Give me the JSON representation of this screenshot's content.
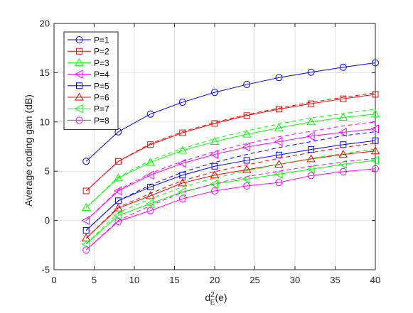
{
  "chart_data": {
    "type": "line",
    "title": "",
    "ylabel": "Average coding gain (dB)",
    "xlabel": "d_E^2(e)",
    "xlabel_parts": {
      "base": "d",
      "sup": "2",
      "sub": "E",
      "rest": "(e)"
    },
    "xlim": [
      0,
      40
    ],
    "ylim": [
      -5,
      20
    ],
    "xticks": [
      0,
      5,
      10,
      15,
      20,
      25,
      30,
      35,
      40
    ],
    "yticks": [
      -5,
      0,
      5,
      10,
      15,
      20
    ],
    "grid": true,
    "legend_position": "top-left",
    "x": [
      4,
      8,
      12,
      16,
      20,
      24,
      28,
      32,
      36,
      40
    ],
    "series": [
      {
        "name": "P=1",
        "color": "#0000ff",
        "marker": "circle",
        "values": [
          6.0,
          9.0,
          10.8,
          12.0,
          13.0,
          13.8,
          14.5,
          15.05,
          15.55,
          16.0
        ],
        "dashed_values": null
      },
      {
        "name": "P=2",
        "color": "#ff0000",
        "marker": "square",
        "values": [
          3.0,
          6.0,
          7.7,
          8.9,
          9.85,
          10.65,
          11.3,
          11.85,
          12.35,
          12.8
        ],
        "dashed_values": [
          3.0,
          6.0,
          7.8,
          9.0,
          9.95,
          10.75,
          11.4,
          12.0,
          12.5,
          12.95
        ]
      },
      {
        "name": "P=3",
        "color": "#00ff00",
        "marker": "triangle-up",
        "values": [
          1.3,
          4.3,
          5.9,
          7.1,
          8.0,
          8.75,
          9.4,
          10.0,
          10.45,
          10.8
        ],
        "dashed_values": [
          1.3,
          4.4,
          6.1,
          7.3,
          8.3,
          9.1,
          9.8,
          10.4,
          10.85,
          11.3
        ]
      },
      {
        "name": "P=4",
        "color": "#ff00ff",
        "marker": "triangle-left",
        "values": [
          0.0,
          3.0,
          4.6,
          5.8,
          6.7,
          7.45,
          8.0,
          8.55,
          8.95,
          9.3
        ],
        "dashed_values": [
          0.0,
          3.1,
          4.8,
          6.0,
          7.0,
          7.8,
          8.5,
          9.05,
          9.6,
          10.0
        ]
      },
      {
        "name": "P=5",
        "color": "#0000ff",
        "marker": "square",
        "values": [
          -1.0,
          2.0,
          3.4,
          4.6,
          5.5,
          6.1,
          6.65,
          7.2,
          7.7,
          8.1
        ],
        "dashed_values": [
          -1.0,
          2.0,
          3.6,
          4.9,
          5.9,
          6.7,
          7.4,
          8.0,
          8.6,
          9.0
        ]
      },
      {
        "name": "P=6",
        "color": "#ff0000",
        "marker": "triangle-up",
        "values": [
          -1.8,
          1.25,
          2.5,
          3.8,
          4.6,
          5.15,
          5.7,
          6.25,
          6.7,
          7.05
        ],
        "dashed_values": [
          -1.8,
          1.35,
          2.75,
          4.05,
          4.95,
          5.65,
          6.3,
          6.9,
          7.4,
          7.85
        ]
      },
      {
        "name": "P=7",
        "color": "#00ff00",
        "marker": "triangle-left",
        "values": [
          -2.4,
          0.5,
          1.7,
          2.9,
          3.7,
          4.2,
          4.7,
          5.2,
          5.7,
          6.1
        ],
        "dashed_values": [
          -2.4,
          0.8,
          2.2,
          3.4,
          4.3,
          5.05,
          5.7,
          6.3,
          6.8,
          7.25
        ]
      },
      {
        "name": "P=8",
        "color": "#ff00ff",
        "marker": "circle",
        "values": [
          -3.0,
          -0.1,
          1.0,
          2.2,
          3.0,
          3.5,
          3.85,
          4.55,
          4.95,
          5.25
        ],
        "dashed_values": [
          -3.0,
          0.0,
          1.5,
          2.85,
          3.75,
          4.45,
          5.0,
          5.5,
          5.95,
          6.3
        ]
      }
    ]
  }
}
